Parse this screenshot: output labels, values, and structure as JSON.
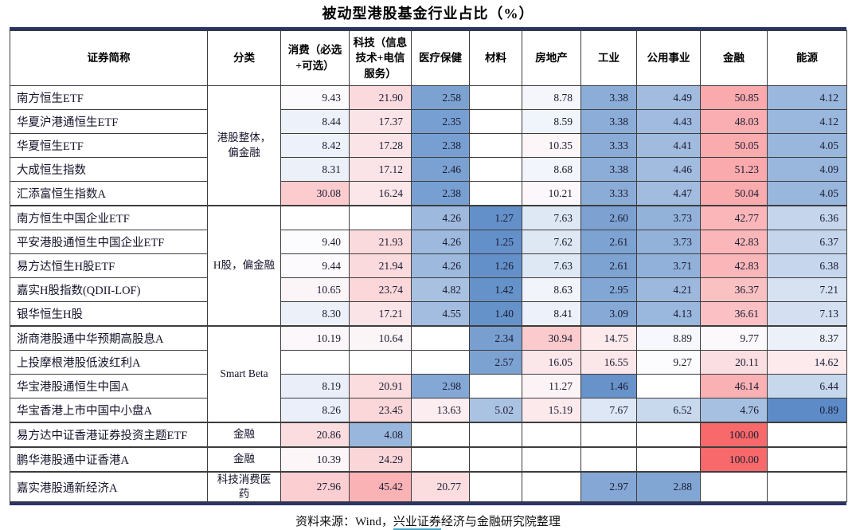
{
  "chart_data": {
    "type": "table",
    "title": "被动型港股基金行业占比（%）",
    "columns": [
      "证券简称",
      "分类",
      "消费（必选+可选）",
      "科技（信息技术+电信服务）",
      "医疗保健",
      "材料",
      "房地产",
      "工业",
      "公用事业",
      "金融",
      "能源"
    ],
    "groups": [
      {
        "category": "港股整体，偏金融",
        "rows": [
          {
            "name": "南方恒生ETF",
            "values": [
              9.43,
              21.9,
              2.58,
              null,
              8.78,
              3.38,
              4.49,
              50.85,
              4.12
            ]
          },
          {
            "name": "华夏沪港通恒生ETF",
            "values": [
              8.44,
              17.37,
              2.35,
              null,
              8.59,
              3.38,
              4.43,
              48.03,
              4.12
            ]
          },
          {
            "name": "华夏恒生ETF",
            "values": [
              8.42,
              17.28,
              2.38,
              null,
              10.35,
              3.33,
              4.41,
              50.05,
              4.05
            ]
          },
          {
            "name": "大成恒生指数",
            "values": [
              8.31,
              17.12,
              2.46,
              null,
              8.68,
              3.38,
              4.46,
              51.23,
              4.09
            ]
          },
          {
            "name": "汇添富恒生指数A",
            "values": [
              30.08,
              16.24,
              2.38,
              null,
              10.21,
              3.33,
              4.47,
              50.04,
              4.05
            ]
          }
        ]
      },
      {
        "category": "H股，偏金融",
        "rows": [
          {
            "name": "南方恒生中国企业ETF",
            "values": [
              null,
              null,
              4.26,
              1.27,
              7.63,
              2.6,
              3.73,
              42.77,
              6.36
            ]
          },
          {
            "name": "平安港股通恒生中国企业ETF",
            "values": [
              9.4,
              21.93,
              4.26,
              1.25,
              7.62,
              2.61,
              3.73,
              42.83,
              6.37
            ]
          },
          {
            "name": "易方达恒生H股ETF",
            "values": [
              9.44,
              21.94,
              4.26,
              1.26,
              7.63,
              2.61,
              3.71,
              42.83,
              6.38
            ]
          },
          {
            "name": "嘉实H股指数(QDII-LOF)",
            "values": [
              10.65,
              23.74,
              4.82,
              1.42,
              8.63,
              2.95,
              4.21,
              36.37,
              7.21
            ]
          },
          {
            "name": "银华恒生H股",
            "values": [
              8.3,
              17.21,
              4.55,
              1.4,
              8.41,
              3.09,
              4.13,
              36.61,
              7.13
            ]
          }
        ]
      },
      {
        "category": "Smart Beta",
        "rows": [
          {
            "name": "浙商港股通中华预期高股息A",
            "values": [
              10.19,
              10.64,
              null,
              2.34,
              30.94,
              14.75,
              8.89,
              9.77,
              8.37
            ]
          },
          {
            "name": "上投摩根港股低波红利A",
            "values": [
              null,
              null,
              null,
              2.57,
              16.05,
              16.55,
              9.27,
              20.11,
              14.62
            ]
          },
          {
            "name": "华宝港股通恒生中国A",
            "values": [
              8.19,
              20.91,
              2.98,
              null,
              11.27,
              1.46,
              null,
              46.14,
              6.44
            ]
          },
          {
            "name": "华宝香港上市中国中小盘A",
            "values": [
              8.26,
              23.45,
              13.63,
              5.02,
              15.19,
              7.67,
              6.52,
              4.76,
              0.89
            ]
          }
        ]
      },
      {
        "category": "金融",
        "rows": [
          {
            "name": "易方达中证香港证券投资主题ETF",
            "values": [
              20.86,
              4.08,
              null,
              null,
              null,
              null,
              null,
              100.0,
              null
            ]
          }
        ]
      },
      {
        "category": "金融",
        "rows": [
          {
            "name": "鹏华港股通中证香港A",
            "values": [
              10.39,
              24.29,
              null,
              null,
              null,
              null,
              null,
              100.0,
              null
            ]
          }
        ]
      },
      {
        "category": "科技消费医药",
        "rows": [
          {
            "name": "嘉实港股通新经济A",
            "values": [
              27.96,
              45.42,
              20.77,
              null,
              null,
              2.97,
              2.88,
              null,
              null
            ]
          }
        ]
      }
    ],
    "color_scale": {
      "min": {
        "value": 0.8,
        "color": "#5a8ac6"
      },
      "mid": {
        "value": 9.2,
        "color": "#fcfcff"
      },
      "max": {
        "value": 100.0,
        "color": "#f8696b"
      },
      "red_gamma": 0.75,
      "accent_rule": "#2a3563"
    }
  },
  "source_note": {
    "prefix": "资料来源：Wind，",
    "link": "兴业证券",
    "suffix": "经济与金融研究院整理"
  }
}
